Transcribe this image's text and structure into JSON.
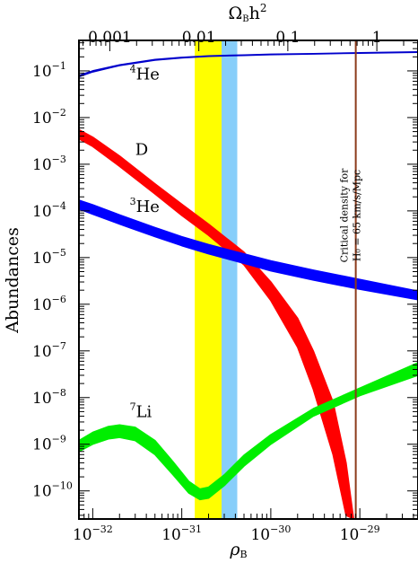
{
  "chart_data": {
    "type": "line",
    "title": "",
    "xlabel": "ρ_B",
    "ylabel": "Abundances",
    "x2label": "Ω_B h^2",
    "xscale": "log",
    "yscale": "log",
    "xlim": [
      7e-33,
      4.5e-29
    ],
    "ylim": [
      2.5e-11,
      0.45
    ],
    "x2lim": [
      0.00045,
      2.9
    ],
    "x_ticks": [
      {
        "value": 1e-32,
        "base": "10",
        "exp": "−32"
      },
      {
        "value": 1e-31,
        "base": "10",
        "exp": "−31"
      },
      {
        "value": 1e-30,
        "base": "10",
        "exp": "−30"
      },
      {
        "value": 1e-29,
        "base": "10",
        "exp": "−29"
      }
    ],
    "x2_ticks": [
      {
        "value": 0.001,
        "label": "0.001"
      },
      {
        "value": 0.01,
        "label": "0.01"
      },
      {
        "value": 0.1,
        "label": "0.1"
      },
      {
        "value": 1,
        "label": "1"
      }
    ],
    "y_ticks": [
      {
        "value": 0.1,
        "base": "10",
        "exp": "−1"
      },
      {
        "value": 0.01,
        "base": "10",
        "exp": "−2"
      },
      {
        "value": 0.001,
        "base": "10",
        "exp": "−3"
      },
      {
        "value": 0.0001,
        "base": "10",
        "exp": "−4"
      },
      {
        "value": 1e-05,
        "base": "10",
        "exp": "−5"
      },
      {
        "value": 1e-06,
        "base": "10",
        "exp": "−6"
      },
      {
        "value": 1e-07,
        "base": "10",
        "exp": "−7"
      },
      {
        "value": 1e-08,
        "base": "10",
        "exp": "−8"
      },
      {
        "value": 1e-09,
        "base": "10",
        "exp": "−9"
      },
      {
        "value": 1e-10,
        "base": "10",
        "exp": "−10"
      }
    ],
    "bands": [
      {
        "name": "yellow-band",
        "x_range": [
          1.4e-31,
          2.8e-31
        ],
        "color": "#ffff00"
      },
      {
        "name": "blue-band",
        "x_range": [
          2.8e-31,
          4.2e-31
        ],
        "color": "#87cefa"
      }
    ],
    "vertical_line": {
      "x": 9e-30,
      "color": "#8b3a1a",
      "label_line1": "Critical density for",
      "label_line2": "H₀ = 65  km/s/Mpc"
    },
    "series": [
      {
        "name": "He",
        "mass": "4",
        "color": "#0000cc",
        "x": [
          7e-33,
          1e-32,
          2e-32,
          5e-32,
          1e-31,
          2e-31,
          5e-31,
          1e-30,
          3e-30,
          1e-29,
          4.5e-29
        ],
        "y_low": [
          0.075,
          0.095,
          0.13,
          0.17,
          0.19,
          0.205,
          0.215,
          0.222,
          0.23,
          0.24,
          0.25
        ],
        "y_high": [
          0.08,
          0.1,
          0.135,
          0.175,
          0.195,
          0.21,
          0.22,
          0.227,
          0.235,
          0.245,
          0.255
        ]
      },
      {
        "name": "D",
        "color": "#ff0000",
        "x": [
          7e-33,
          1e-32,
          2e-32,
          5e-32,
          1e-31,
          2e-31,
          5e-31,
          1e-30,
          2e-30,
          3e-30,
          5e-30,
          7e-30,
          8.5e-30
        ],
        "y_low": [
          0.0035,
          0.0024,
          0.0009,
          0.00023,
          8e-05,
          3e-05,
          7e-06,
          1.2e-06,
          1.2e-07,
          1.5e-08,
          6e-10,
          3e-11,
          2.5e-11
        ],
        "y_high": [
          0.0055,
          0.0038,
          0.0015,
          0.00038,
          0.00014,
          5.2e-05,
          1.3e-05,
          3e-06,
          5e-07,
          1e-07,
          8e-09,
          4e-10,
          2.5e-11
        ]
      },
      {
        "name": "He",
        "mass": "3",
        "color": "#0000ff",
        "x": [
          7e-33,
          1e-32,
          2e-32,
          5e-32,
          1e-31,
          2e-31,
          5e-31,
          1e-30,
          3e-30,
          1e-29,
          4.5e-29
        ],
        "y_low": [
          0.00011,
          8.5e-05,
          5.2e-05,
          2.8e-05,
          1.8e-05,
          1.2e-05,
          7.5e-06,
          5.2e-06,
          3.3e-06,
          2.1e-06,
          1.25e-06
        ],
        "y_high": [
          0.00017,
          0.000135,
          8.2e-05,
          4.4e-05,
          2.8e-05,
          1.9e-05,
          1.2e-05,
          8.5e-06,
          5.4e-06,
          3.4e-06,
          1.9e-06
        ]
      },
      {
        "name": "Li",
        "mass": "7",
        "color": "#00ee00",
        "x": [
          7e-33,
          1e-32,
          1.5e-32,
          2e-32,
          3e-32,
          5e-32,
          8e-32,
          1.2e-31,
          1.6e-31,
          2e-31,
          3e-31,
          5e-31,
          1e-30,
          3e-30,
          1e-29,
          4.5e-29
        ],
        "y_low": [
          7e-10,
          1e-09,
          1.3e-09,
          1.4e-09,
          1.2e-09,
          6e-10,
          2.2e-10,
          9e-11,
          6.5e-11,
          7e-11,
          1.3e-10,
          3.4e-10,
          1e-09,
          4e-09,
          1.1e-08,
          3e-08
        ],
        "y_high": [
          1.2e-09,
          1.8e-09,
          2.4e-09,
          2.6e-09,
          2.3e-09,
          1.2e-09,
          4.2e-10,
          1.6e-10,
          1.1e-10,
          1.2e-10,
          2.2e-10,
          5.8e-10,
          1.6e-09,
          5.8e-09,
          1.6e-08,
          5.6e-08
        ]
      }
    ],
    "annotations": [
      {
        "series": "He",
        "mass": "4",
        "x": 2.6e-32,
        "y": 0.065
      },
      {
        "series": "D",
        "mass": "",
        "x": 3e-32,
        "y": 0.0016
      },
      {
        "series": "He",
        "mass": "3",
        "x": 2.6e-32,
        "y": 9.5e-05
      },
      {
        "series": "Li",
        "mass": "7",
        "x": 2.6e-32,
        "y": 3.8e-09
      }
    ]
  }
}
